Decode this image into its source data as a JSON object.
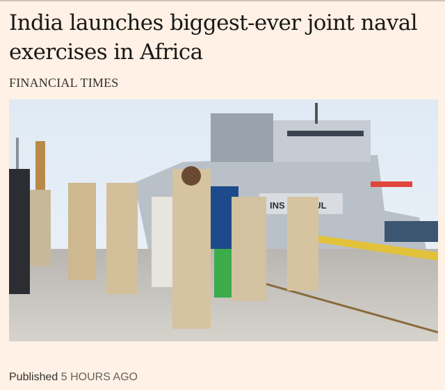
{
  "article": {
    "headline": "India launches biggest-ever joint naval exercises in Africa",
    "source": "FINANCIAL TIMES",
    "image_alt": "",
    "ship_label": "INS TRISHUL",
    "published_label": "Published",
    "published_time": "5 HOURS AGO"
  },
  "colors": {
    "background": "#fff1e5",
    "text": "#33302e"
  }
}
